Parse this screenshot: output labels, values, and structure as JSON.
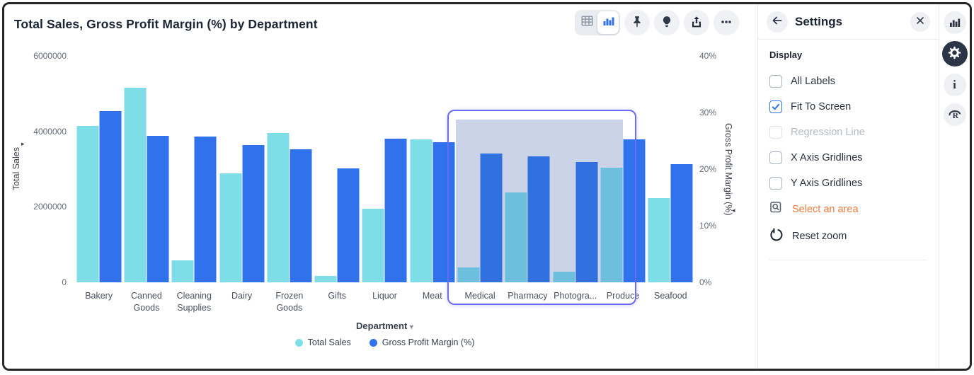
{
  "window": {
    "title": "Total Sales, Gross Profit Margin (%) by Department"
  },
  "colors": {
    "series_teal": "#7edee8",
    "series_blue": "#2f72ec",
    "series_teal_selected": "#6cc0de",
    "series_blue_selected": "#3070df",
    "selection_border": "#6b6bf5",
    "selection_fill": "#cbd3e8",
    "accent_orange": "#f0783c",
    "icon_dark": "#2e3849"
  },
  "toolbar": {
    "view_toggle": {
      "options": [
        "table-view",
        "chart-view"
      ],
      "selected": "chart-view"
    },
    "buttons": [
      "pin",
      "insights",
      "export",
      "more-options"
    ]
  },
  "chart_data": {
    "type": "bar",
    "title": "Total Sales, Gross Profit Margin (%) by Department",
    "categories": [
      "Bakery",
      "Canned Goods",
      "Cleaning Supplies",
      "Dairy",
      "Frozen Goods",
      "Gifts",
      "Liquor",
      "Meat",
      "Medical",
      "Pharmacy",
      "Photogra...",
      "Produce",
      "Seafood"
    ],
    "series": [
      {
        "name": "Total Sales",
        "axis": "left",
        "values": [
          4150000,
          5150000,
          580000,
          2880000,
          3950000,
          170000,
          1950000,
          3780000,
          390000,
          2380000,
          280000,
          3040000,
          2230000
        ]
      },
      {
        "name": "Gross Profit Margin (%)",
        "axis": "right",
        "values": [
          30.2,
          25.9,
          25.7,
          24.2,
          23.5,
          20.1,
          25.4,
          24.7,
          22.8,
          22.2,
          21.2,
          25.2,
          20.9
        ]
      }
    ],
    "left_axis": {
      "label": "Total Sales",
      "max": 6000000,
      "ticks": [
        {
          "label": "0",
          "value": 0
        },
        {
          "label": "2000000",
          "value": 2000000
        },
        {
          "label": "4000000",
          "value": 4000000
        },
        {
          "label": "6000000",
          "value": 6000000
        }
      ]
    },
    "right_axis": {
      "label": "Gross Profit Margin (%)",
      "max": 40,
      "ticks": [
        {
          "label": "0%",
          "value": 0
        },
        {
          "label": "10%",
          "value": 10
        },
        {
          "label": "20%",
          "value": 20
        },
        {
          "label": "30%",
          "value": 30
        },
        {
          "label": "40%",
          "value": 40
        }
      ]
    },
    "x_axis": {
      "label": "Department"
    },
    "legend_position": "bottom",
    "grid": "off",
    "legend": [
      {
        "label": "Total Sales",
        "color": "#7edee8"
      },
      {
        "label": "Gross Profit Margin (%)",
        "color": "#2f72ec"
      }
    ],
    "selection": {
      "from_index": 8,
      "to_index": 11,
      "categories": [
        "Medical",
        "Pharmacy",
        "Photogra...",
        "Produce"
      ]
    }
  },
  "settings_panel": {
    "title": "Settings",
    "section": "Display",
    "checkboxes": [
      {
        "label": "All Labels",
        "checked": false,
        "disabled": false
      },
      {
        "label": "Fit To Screen",
        "checked": true,
        "disabled": false
      },
      {
        "label": "Regression Line",
        "checked": false,
        "disabled": true
      },
      {
        "label": "X Axis Gridlines",
        "checked": false,
        "disabled": false
      },
      {
        "label": "Y Axis Gridlines",
        "checked": false,
        "disabled": false
      }
    ],
    "actions": [
      {
        "label": "Select an area",
        "icon": "select-area-icon",
        "active": true
      },
      {
        "label": "Reset zoom",
        "icon": "reset-zoom-icon",
        "active": false
      }
    ]
  },
  "right_rail": {
    "buttons": [
      "chart",
      "settings",
      "info",
      "r-logo"
    ],
    "active": "settings"
  }
}
